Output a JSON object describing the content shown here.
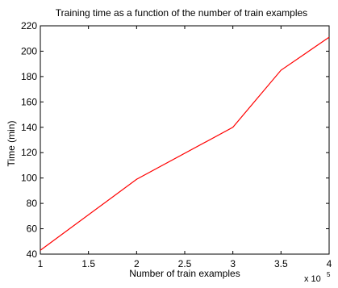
{
  "chart_data": {
    "type": "line",
    "title": "Training time as a function of the number of train examples",
    "xlabel": "Number of train examples",
    "ylabel": "Time (min)",
    "x_multiplier_label": "x 10",
    "x_multiplier_exponent": "5",
    "xlim": [
      1,
      4
    ],
    "ylim": [
      40,
      220
    ],
    "xticks": [
      1,
      1.5,
      2,
      2.5,
      3,
      3.5,
      4
    ],
    "xtick_labels": [
      "1",
      "1.5",
      "2",
      "2.5",
      "3",
      "3.5",
      "4"
    ],
    "yticks": [
      40,
      60,
      80,
      100,
      120,
      140,
      160,
      180,
      200,
      220
    ],
    "ytick_labels": [
      "40",
      "60",
      "80",
      "100",
      "120",
      "140",
      "160",
      "180",
      "200",
      "220"
    ],
    "grid": false,
    "series": [
      {
        "color": "#ff0000",
        "x": [
          1,
          2,
          3,
          3.5,
          4
        ],
        "y": [
          43,
          99,
          140,
          185,
          211
        ]
      }
    ]
  }
}
